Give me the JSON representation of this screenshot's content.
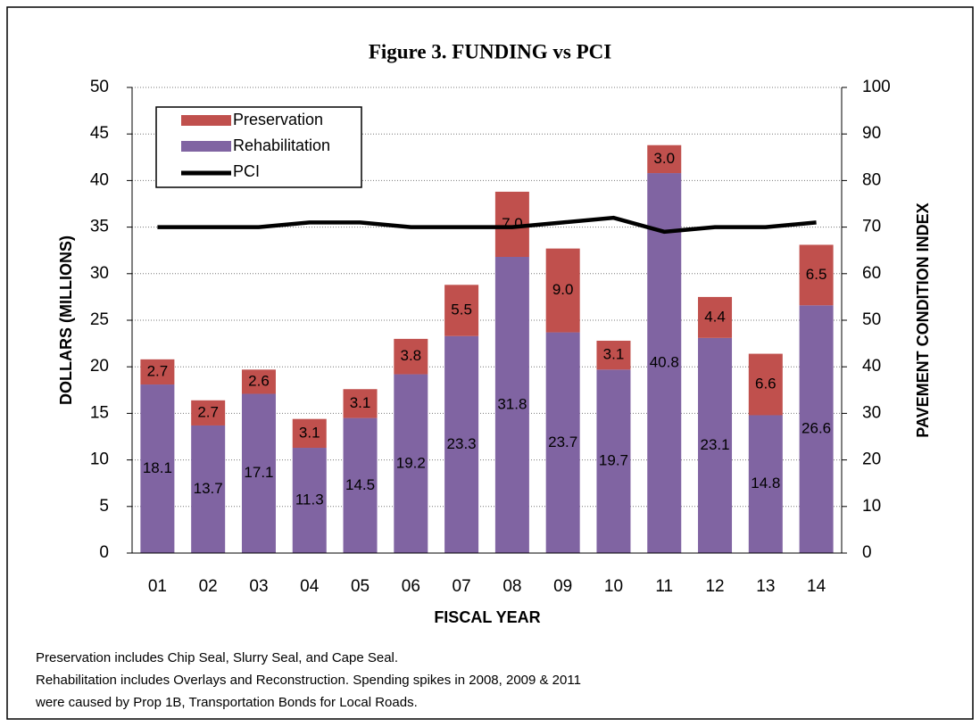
{
  "chart_data": {
    "type": "bar",
    "title": "Figure 3.  FUNDING vs PCI",
    "xlabel": "FISCAL YEAR",
    "ylabel": "DOLLARS (MILLIONS)",
    "y2label": "PAVEMENT CONDITION INDEX",
    "categories": [
      "01",
      "02",
      "03",
      "04",
      "05",
      "06",
      "07",
      "08",
      "09",
      "10",
      "11",
      "12",
      "13",
      "14"
    ],
    "series": [
      {
        "name": "Preservation",
        "color": "#c0504d",
        "type": "bar",
        "values": [
          2.7,
          2.7,
          2.6,
          3.1,
          3.1,
          3.8,
          5.5,
          7.0,
          9.0,
          3.1,
          3.0,
          4.4,
          6.6,
          6.5
        ],
        "value_labels": [
          "2.7",
          "2.7",
          "2.6",
          "3.1",
          "3.1",
          "3.8",
          "5.5",
          "7.0",
          "9.0",
          "3.1",
          "3.0",
          "4.4",
          "6.6",
          "6.5"
        ]
      },
      {
        "name": "Rehabilitation",
        "color": "#8064a2",
        "type": "bar",
        "values": [
          18.1,
          13.7,
          17.1,
          11.3,
          14.5,
          19.2,
          23.3,
          31.8,
          23.7,
          19.7,
          40.8,
          23.1,
          14.8,
          26.6
        ],
        "value_labels": [
          "18.1",
          "13.7",
          "17.1",
          "11.3",
          "14.5",
          "19.2",
          "23.3",
          "31.8",
          "23.7",
          "19.7",
          "40.8",
          "23.1",
          "14.8",
          "26.6"
        ]
      },
      {
        "name": "PCI",
        "color": "#000000",
        "type": "line",
        "axis": "y2",
        "values": [
          70,
          70,
          70,
          71,
          71,
          70,
          70,
          70,
          71,
          72,
          69,
          70,
          70,
          71
        ]
      }
    ],
    "ylim": [
      0,
      50
    ],
    "yticks": [
      0,
      5,
      10,
      15,
      20,
      25,
      30,
      35,
      40,
      45,
      50
    ],
    "y2lim": [
      0,
      100
    ],
    "y2ticks": [
      0,
      10,
      20,
      30,
      40,
      50,
      60,
      70,
      80,
      90,
      100
    ],
    "grid": true,
    "legend": "upper left",
    "notes": [
      "Preservation includes Chip Seal, Slurry Seal, and Cape Seal.",
      "Rehabilitation includes Overlays and Reconstruction.  Spending spikes in 2008, 2009 & 2011",
      "were caused by Prop 1B, Transportation Bonds for Local Roads."
    ]
  }
}
